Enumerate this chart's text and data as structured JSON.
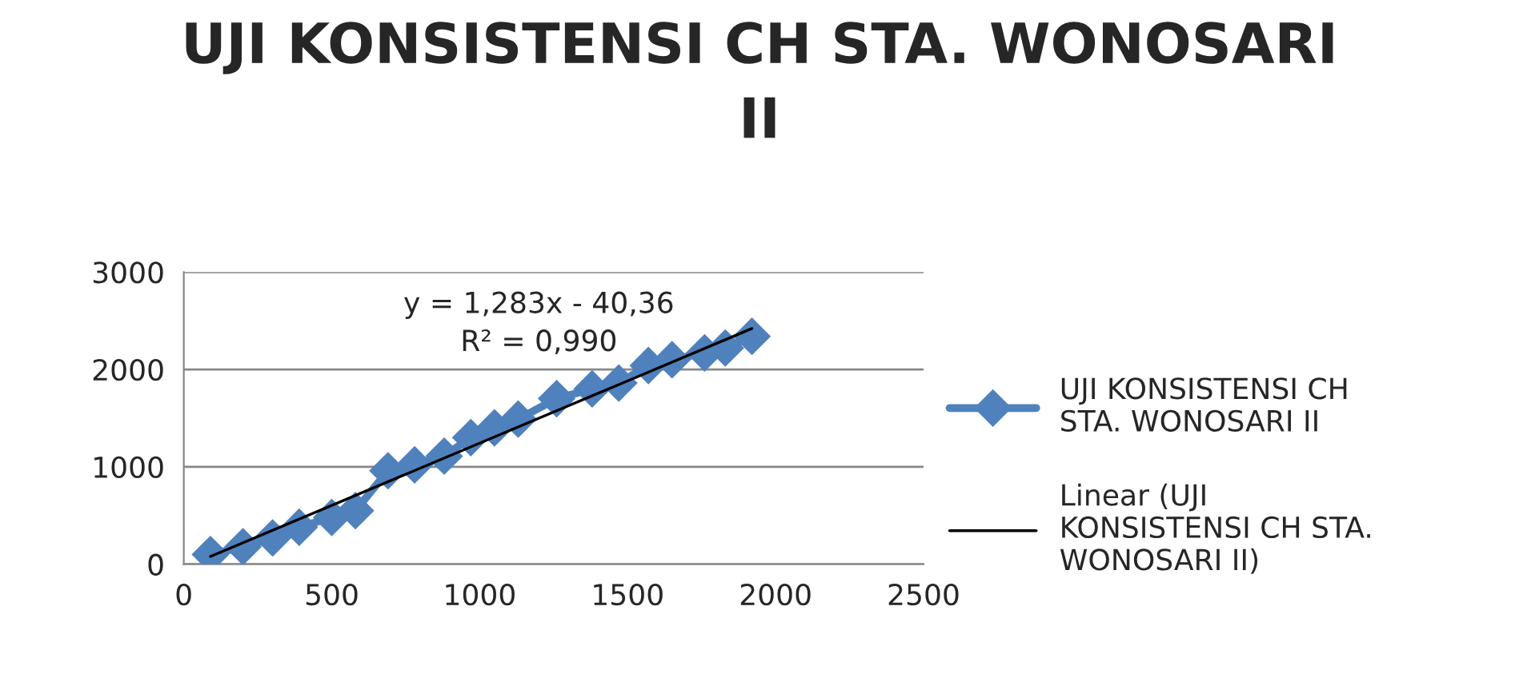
{
  "chart_data": {
    "type": "line",
    "title": "UJI KONSISTENSI CH STA. WONOSARI II",
    "x": [
      90,
      200,
      300,
      390,
      500,
      580,
      690,
      780,
      880,
      970,
      1050,
      1130,
      1260,
      1380,
      1470,
      1570,
      1650,
      1760,
      1830,
      1920
    ],
    "series": [
      {
        "name": "UJI KONSISTENSI CH STA. WONOSARI II",
        "color": "#4f81bd",
        "marker": "diamond",
        "values": [
          100,
          180,
          270,
          380,
          480,
          550,
          960,
          1020,
          1110,
          1300,
          1400,
          1490,
          1700,
          1800,
          1860,
          2040,
          2100,
          2170,
          2220,
          2340
        ]
      },
      {
        "name": "Linear (UJI KONSISTENSI CH STA. WONOSARI II)",
        "color": "#000000",
        "marker": "none",
        "x": [
          90,
          1920
        ],
        "values": [
          80,
          2420
        ]
      }
    ],
    "annotations": [
      "y = 1,283x - 40,36",
      "R² = 0,990"
    ],
    "xlim": [
      0,
      2500
    ],
    "xticks": [
      0,
      500,
      1000,
      1500,
      2000,
      2500
    ],
    "ylim": [
      0,
      3000
    ],
    "yticks": [
      0,
      1000,
      2000,
      3000
    ],
    "grid": "y",
    "legend": "right"
  }
}
